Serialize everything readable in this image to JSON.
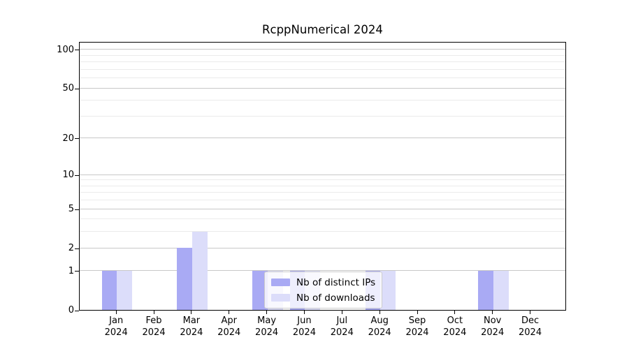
{
  "chart_data": {
    "type": "bar",
    "title": "RcppNumerical 2024",
    "categories": [
      "Jan",
      "Feb",
      "Mar",
      "Apr",
      "May",
      "Jun",
      "Jul",
      "Aug",
      "Sep",
      "Oct",
      "Nov",
      "Dec"
    ],
    "year_label": "2024",
    "series": [
      {
        "name": "Nb of distinct IPs",
        "color": "#a9aaf4",
        "values": [
          1,
          0,
          2,
          0,
          1,
          1,
          0,
          1,
          0,
          0,
          1,
          0
        ]
      },
      {
        "name": "Nb of downloads",
        "color": "#dcddfa",
        "values": [
          1,
          0,
          3,
          0,
          1,
          1,
          0,
          1,
          0,
          0,
          1,
          0
        ]
      }
    ],
    "y_axis": {
      "scale": "log1p",
      "ticks": [
        0,
        1,
        2,
        5,
        10,
        20,
        50,
        100
      ],
      "minor_ticks": [
        3,
        4,
        6,
        7,
        8,
        9,
        30,
        40,
        60,
        70,
        80,
        90
      ],
      "range_top": 116
    },
    "grid": true,
    "legend": {
      "position": "lower-center"
    },
    "colors": {
      "frame": "#000000",
      "major_grid": "#c8c8c8",
      "minor_grid": "#ebebeb",
      "legend_border": "#cccccc"
    }
  }
}
